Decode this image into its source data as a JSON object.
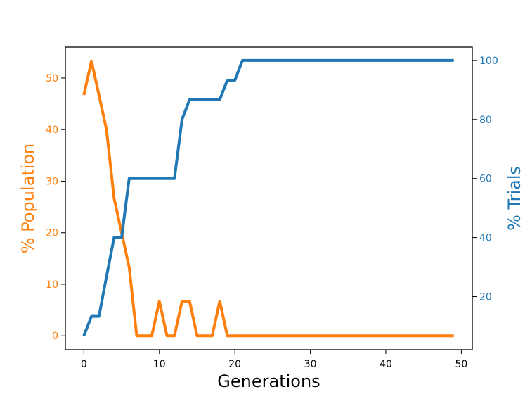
{
  "chart_data": {
    "type": "line",
    "xlabel": "Generations",
    "ylabel_left": "% Population",
    "ylabel_right": "% Trials",
    "xlim": [
      -2.45,
      51.45
    ],
    "ylim_left": [
      -2.7,
      56.0
    ],
    "ylim_right": [
      2.0,
      104.5
    ],
    "x_ticks": [
      0,
      10,
      20,
      30,
      40,
      50
    ],
    "y_left_ticks": [
      0,
      10,
      20,
      30,
      40,
      50
    ],
    "y_right_ticks": [
      20,
      40,
      60,
      80,
      100
    ],
    "colors": {
      "left": "#ff7f0e",
      "right": "#1f77b4"
    },
    "grid": false,
    "series": [
      {
        "axis": "left",
        "color": "#ff7f0e",
        "x": [
          0,
          1,
          2,
          3,
          4,
          5,
          6,
          7,
          8,
          9,
          10,
          11,
          12,
          13,
          14,
          15,
          16,
          17,
          18,
          19,
          20,
          21,
          22,
          23,
          24,
          25,
          26,
          27,
          28,
          29,
          30,
          31,
          32,
          33,
          34,
          35,
          36,
          37,
          38,
          39,
          40,
          41,
          42,
          43,
          44,
          45,
          46,
          47,
          48,
          49
        ],
        "values": [
          46.7,
          53.3,
          46.7,
          40.0,
          26.7,
          20.0,
          13.3,
          0,
          0,
          0,
          6.7,
          0,
          0,
          6.7,
          6.7,
          0,
          0,
          0,
          6.7,
          0,
          0,
          0,
          0,
          0,
          0,
          0,
          0,
          0,
          0,
          0,
          0,
          0,
          0,
          0,
          0,
          0,
          0,
          0,
          0,
          0,
          0,
          0,
          0,
          0,
          0,
          0,
          0,
          0,
          0,
          0
        ]
      },
      {
        "axis": "right",
        "color": "#1f77b4",
        "x": [
          0,
          1,
          2,
          3,
          4,
          5,
          6,
          7,
          8,
          9,
          10,
          11,
          12,
          13,
          14,
          15,
          16,
          17,
          18,
          19,
          20,
          21,
          22,
          23,
          24,
          25,
          26,
          27,
          28,
          29,
          30,
          31,
          32,
          33,
          34,
          35,
          36,
          37,
          38,
          39,
          40,
          41,
          42,
          43,
          44,
          45,
          46,
          47,
          48,
          49
        ],
        "values": [
          6.7,
          13.3,
          13.3,
          26.7,
          40.0,
          40.0,
          60.0,
          60.0,
          60.0,
          60.0,
          60.0,
          60.0,
          60.0,
          80.0,
          86.7,
          86.7,
          86.7,
          86.7,
          86.7,
          93.3,
          93.3,
          100,
          100,
          100,
          100,
          100,
          100,
          100,
          100,
          100,
          100,
          100,
          100,
          100,
          100,
          100,
          100,
          100,
          100,
          100,
          100,
          100,
          100,
          100,
          100,
          100,
          100,
          100,
          100,
          100
        ]
      }
    ]
  }
}
